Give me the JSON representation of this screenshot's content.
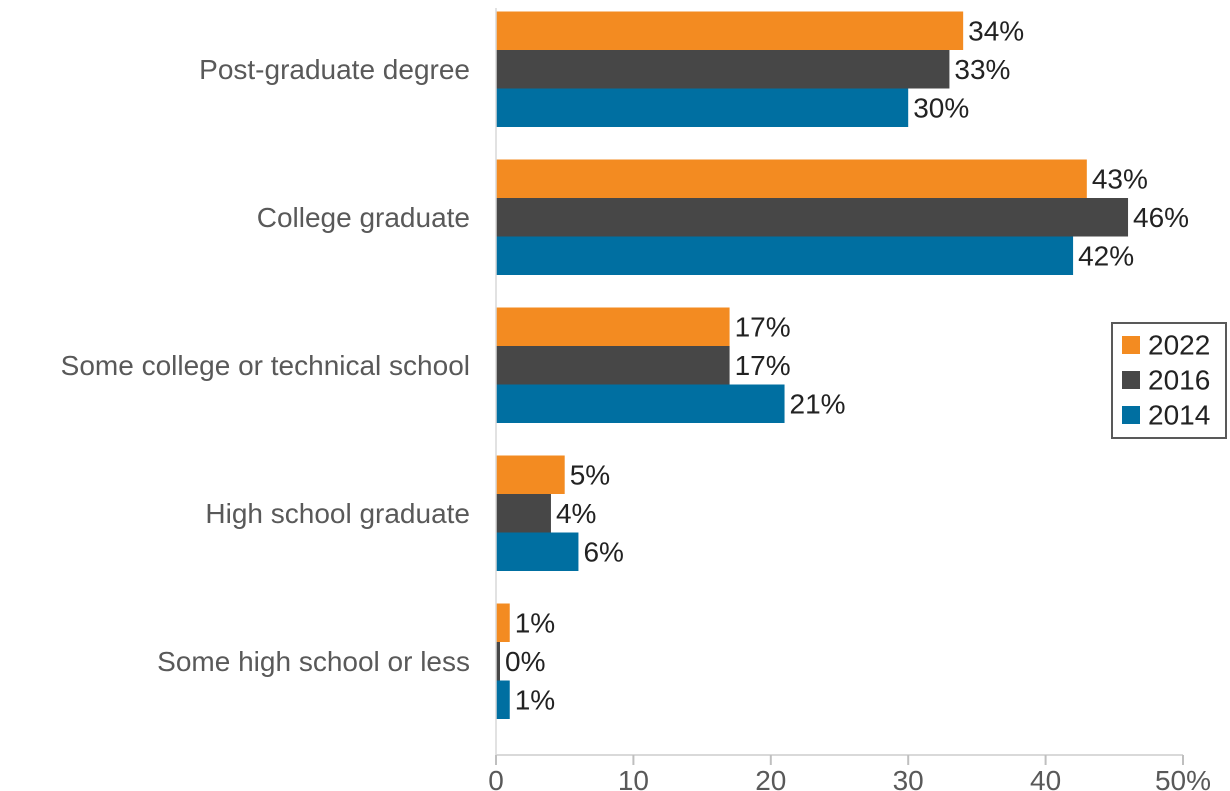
{
  "chart_data": {
    "type": "bar",
    "orientation": "horizontal",
    "categories": [
      "Post-graduate degree",
      "College graduate",
      "Some college or technical school",
      "High school graduate",
      "Some high school or less"
    ],
    "series": [
      {
        "name": "2022",
        "color": "#F38B21",
        "values": [
          34,
          43,
          17,
          5,
          1
        ],
        "labels": [
          "34%",
          "43%",
          "17%",
          "5%",
          "1%"
        ]
      },
      {
        "name": "2016",
        "color": "#474747",
        "values": [
          33,
          46,
          17,
          4,
          0
        ],
        "labels": [
          "33%",
          "46%",
          "17%",
          "4%",
          "0%"
        ]
      },
      {
        "name": "2014",
        "color": "#006FA1",
        "values": [
          30,
          42,
          21,
          6,
          1
        ],
        "labels": [
          "30%",
          "42%",
          "21%",
          "6%",
          "1%"
        ]
      }
    ],
    "xlim": [
      0,
      50
    ],
    "xticks": [
      "0",
      "10",
      "20",
      "30",
      "40",
      "50%"
    ],
    "grid": false,
    "legend": {
      "position": "right",
      "entries": [
        "2022",
        "2016",
        "2014"
      ]
    }
  }
}
